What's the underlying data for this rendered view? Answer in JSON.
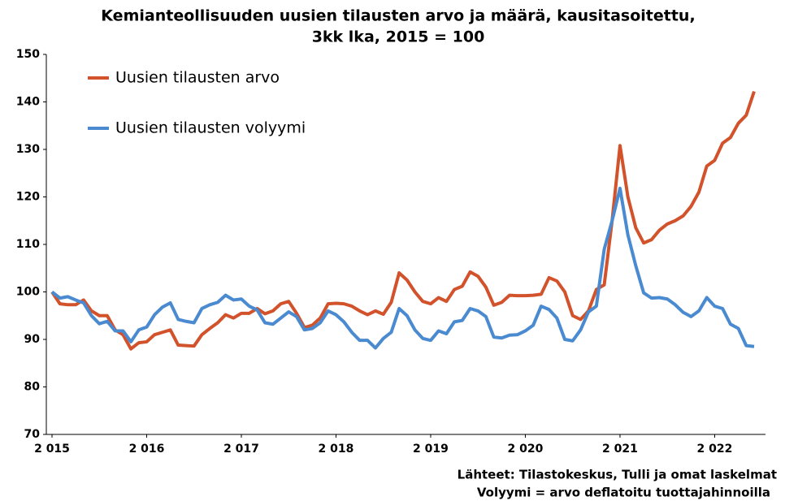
{
  "chart_data": {
    "type": "line",
    "title": [
      "Kemianteollisuuden uusien tilausten arvo ja määrä, kausitasoitettu,",
      "3kk lka, 2015 = 100"
    ],
    "notes": [
      "Lähteet: Tilastokeskus, Tulli ja omat laskelmat",
      "Volyymi = arvo deflatoitu tuottajahinnoilla"
    ],
    "categories": [
      "2 015",
      null,
      null,
      null,
      null,
      null,
      null,
      null,
      null,
      null,
      null,
      null,
      "2 016",
      null,
      null,
      null,
      null,
      null,
      null,
      null,
      null,
      null,
      null,
      null,
      "2 017",
      null,
      null,
      null,
      null,
      null,
      null,
      null,
      null,
      null,
      null,
      null,
      "2 018",
      null,
      null,
      null,
      null,
      null,
      null,
      null,
      null,
      null,
      null,
      null,
      "2 019",
      null,
      null,
      null,
      null,
      null,
      null,
      null,
      null,
      null,
      null,
      null,
      "2 020",
      null,
      null,
      null,
      null,
      null,
      null,
      null,
      null,
      null,
      null,
      null,
      "2 021",
      null,
      null,
      null,
      null,
      null,
      null,
      null,
      null,
      null,
      null,
      null,
      "2 022",
      null,
      null,
      null,
      null,
      null
    ],
    "series": [
      {
        "name": "Uusien tilausten arvo",
        "color": "#d2522b",
        "values": [
          100,
          97.5,
          97.3,
          97.3,
          98.3,
          96,
          95,
          95,
          92,
          91,
          88,
          89.3,
          89.5,
          91,
          91.5,
          92,
          88.8,
          88.7,
          88.6,
          91,
          92.3,
          93.5,
          95.2,
          94.5,
          95.5,
          95.5,
          96.5,
          95.4,
          96,
          97.5,
          98,
          95.5,
          92.5,
          93,
          94.5,
          97.5,
          97.6,
          97.5,
          97,
          96,
          95.2,
          96,
          95.3,
          97.8,
          104,
          102.5,
          100,
          98,
          97.5,
          98.8,
          98,
          100.5,
          101.2,
          104.2,
          103.3,
          101,
          97.2,
          97.8,
          99.3,
          99.2,
          99.2,
          99.3,
          99.5,
          103,
          102.3,
          100,
          95,
          94.2,
          96,
          100.5,
          101.5,
          115,
          130.8,
          120,
          113.5,
          110.3,
          111,
          113,
          114.3,
          115,
          116,
          118,
          121,
          126.5,
          127.7,
          131.3,
          132.5,
          135.5,
          137.2,
          142.2
        ]
      },
      {
        "name": "Uusien tilausten volyymi",
        "color": "#4a8ad0",
        "values": [
          100,
          98.7,
          99,
          98.3,
          97.7,
          95,
          93.3,
          93.8,
          91.8,
          91.8,
          89.5,
          92,
          92.6,
          95.2,
          96.8,
          97.7,
          94.2,
          93.8,
          93.5,
          96.5,
          97.3,
          97.8,
          99.3,
          98.3,
          98.5,
          97,
          96.2,
          93.5,
          93.2,
          94.5,
          95.8,
          94.8,
          92,
          92.3,
          93.5,
          96,
          95.2,
          93.7,
          91.5,
          89.8,
          89.8,
          88.2,
          90.2,
          91.5,
          96.5,
          95,
          92,
          90.2,
          89.8,
          91.8,
          91.2,
          93.7,
          94,
          96.5,
          96,
          94.8,
          90.5,
          90.3,
          90.9,
          91,
          91.8,
          93,
          97,
          96.3,
          94.5,
          90,
          89.7,
          92,
          95.8,
          97,
          109,
          115,
          121.8,
          112,
          105.5,
          99.8,
          98.7,
          98.8,
          98.5,
          97.3,
          95.7,
          94.8,
          96,
          98.8,
          97,
          96.5,
          93.2,
          92.3,
          88.7,
          88.5
        ]
      }
    ],
    "ylim": [
      70,
      150
    ],
    "yticks": [
      70,
      80,
      90,
      100,
      110,
      120,
      130,
      140,
      150
    ],
    "grid": false,
    "legend": "upper left"
  }
}
